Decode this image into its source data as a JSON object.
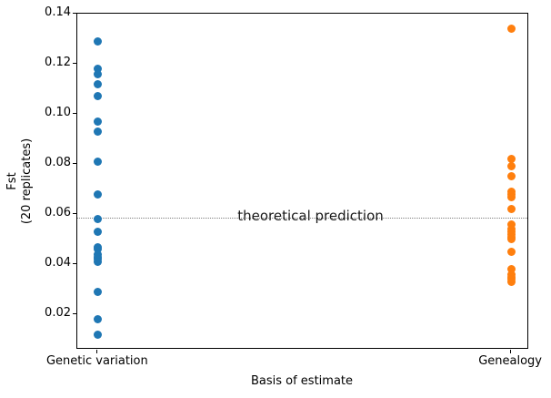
{
  "chart_data": {
    "type": "scatter",
    "title": "",
    "xlabel": "Basis of estimate",
    "ylabel": [
      "Fst",
      "(20 replicates)"
    ],
    "categories": [
      "Genetic variation",
      "Genealogy"
    ],
    "ylim": [
      0.006,
      0.14
    ],
    "yticks": [
      0.02,
      0.04,
      0.06,
      0.08,
      0.1,
      0.12,
      0.14
    ],
    "grid": false,
    "legend": "none",
    "series": [
      {
        "name": "Genetic variation",
        "color": "#1f77b4",
        "values": [
          0.129,
          0.118,
          0.116,
          0.112,
          0.107,
          0.097,
          0.093,
          0.081,
          0.068,
          0.058,
          0.053,
          0.047,
          0.046,
          0.044,
          0.043,
          0.042,
          0.041,
          0.029,
          0.018,
          0.012
        ]
      },
      {
        "name": "Genealogy",
        "color": "#ff7f0e",
        "values": [
          0.134,
          0.082,
          0.079,
          0.075,
          0.069,
          0.068,
          0.067,
          0.062,
          0.056,
          0.054,
          0.053,
          0.052,
          0.051,
          0.05,
          0.045,
          0.038,
          0.036,
          0.035,
          0.034,
          0.033
        ]
      }
    ],
    "annotation": {
      "label": "theoretical prediction",
      "y": 0.0588,
      "line_style": "dotted",
      "line_color": "#808080"
    }
  }
}
